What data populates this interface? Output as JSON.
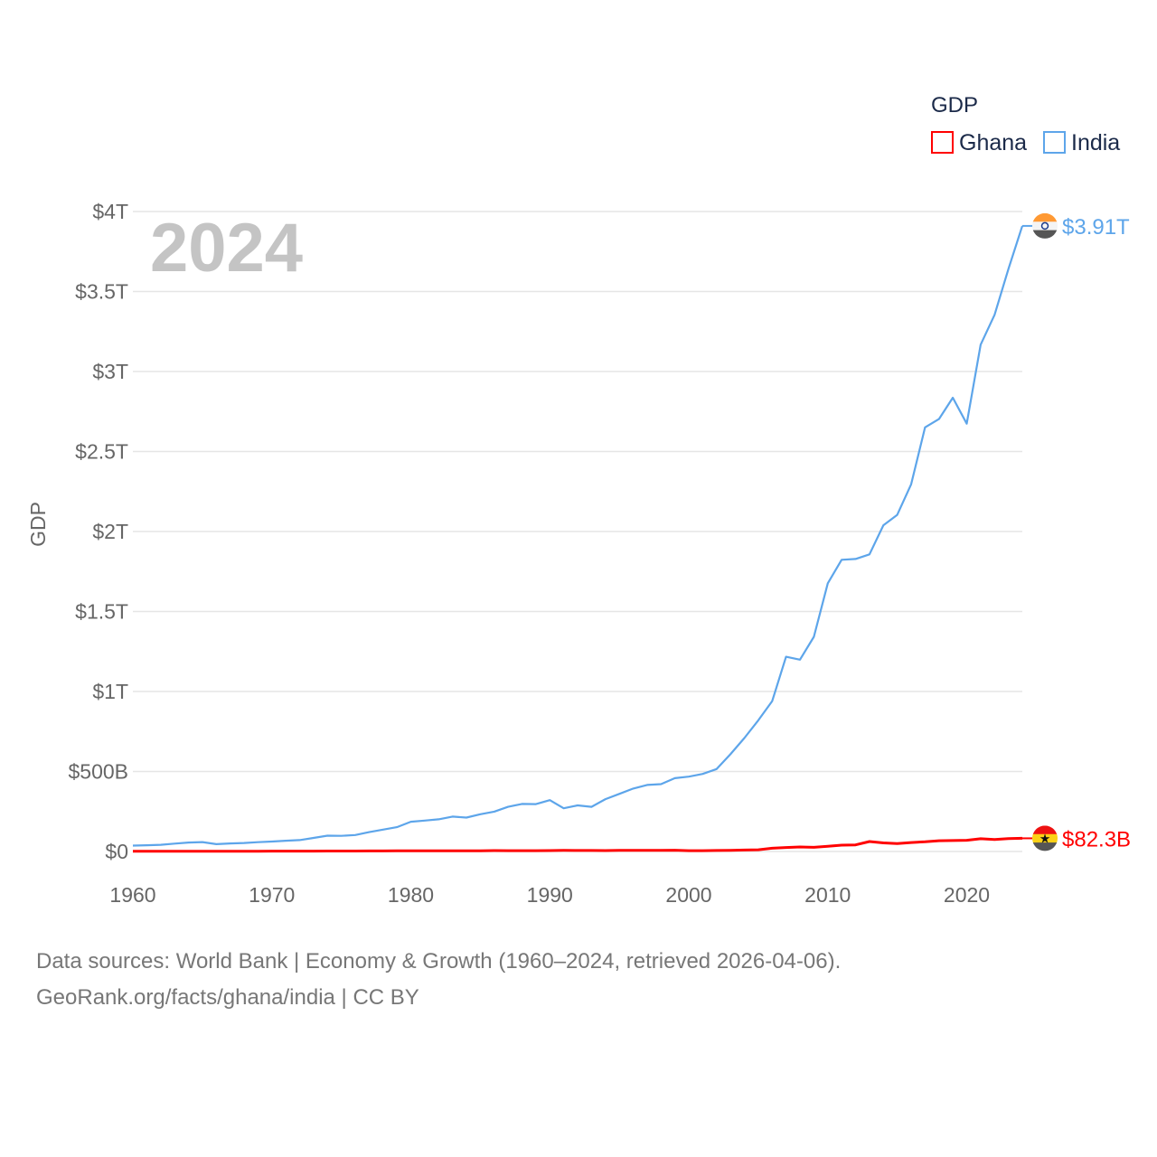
{
  "chart_data": {
    "type": "line",
    "title": "GDP",
    "ylabel": "GDP",
    "xlabel": "",
    "year_label": "2024",
    "ylim": [
      0,
      4000
    ],
    "xlim": [
      1960,
      2024
    ],
    "grid": true,
    "legend_position": "top-right",
    "y_ticks": [
      {
        "value": 0,
        "label": "$0"
      },
      {
        "value": 500,
        "label": "$500B"
      },
      {
        "value": 1000,
        "label": "$1T"
      },
      {
        "value": 1500,
        "label": "$1.5T"
      },
      {
        "value": 2000,
        "label": "$2T"
      },
      {
        "value": 2500,
        "label": "$2.5T"
      },
      {
        "value": 3000,
        "label": "$3T"
      },
      {
        "value": 3500,
        "label": "$3.5T"
      },
      {
        "value": 4000,
        "label": "$4T"
      }
    ],
    "x_ticks": [
      1960,
      1970,
      1980,
      1990,
      2000,
      2010,
      2020
    ],
    "units": "billions USD",
    "series": [
      {
        "name": "Ghana",
        "color": "#ff0000",
        "end_label": "$82.3B",
        "flag": "ghana-flag",
        "values": [
          1.2,
          1.3,
          1.4,
          1.5,
          1.7,
          1.8,
          1.7,
          1.6,
          1.7,
          1.9,
          2.2,
          2.4,
          2.1,
          2.5,
          2.9,
          2.8,
          2.7,
          3.2,
          3.6,
          4.0,
          4.4,
          4.0,
          4.0,
          4.1,
          4.4,
          4.5,
          5.7,
          5.1,
          5.2,
          5.3,
          5.9,
          6.6,
          6.4,
          6.0,
          5.4,
          6.5,
          6.9,
          6.9,
          7.5,
          7.7,
          5.0,
          5.3,
          6.2,
          7.6,
          8.9,
          10.7,
          20.4,
          24.8,
          28.5,
          26.0,
          32.2,
          39.6,
          41.3,
          62.4,
          53.7,
          49.4,
          56.2,
          60.4,
          67.3,
          68.3,
          70.0,
          79.5,
          74.3,
          80.0,
          82.3
        ]
      },
      {
        "name": "India",
        "color": "#5da5ea",
        "end_label": "$3.91T",
        "flag": "india-flag",
        "values": [
          37,
          39,
          42,
          49,
          56,
          59,
          46,
          50,
          53,
          58,
          62,
          67,
          71,
          85,
          99,
          98,
          103,
          121,
          137,
          152,
          186,
          193,
          201,
          218,
          212,
          233,
          249,
          279,
          297,
          296,
          321,
          270,
          288,
          279,
          327,
          360,
          393,
          416,
          421,
          458,
          468,
          485,
          515,
          608,
          709,
          820,
          940,
          1217,
          1199,
          1342,
          1676,
          1823,
          1828,
          1857,
          2039,
          2104,
          2295,
          2651,
          2703,
          2836,
          2674,
          3168,
          3354,
          3640,
          3910
        ]
      }
    ]
  },
  "legend": {
    "title": "GDP",
    "items": [
      "Ghana",
      "India"
    ]
  },
  "footer": {
    "line1": "Data sources: World Bank | Economy & Growth (1960–2024, retrieved 2026-04-06).",
    "line2": "GeoRank.org/facts/ghana/india | CC BY"
  }
}
